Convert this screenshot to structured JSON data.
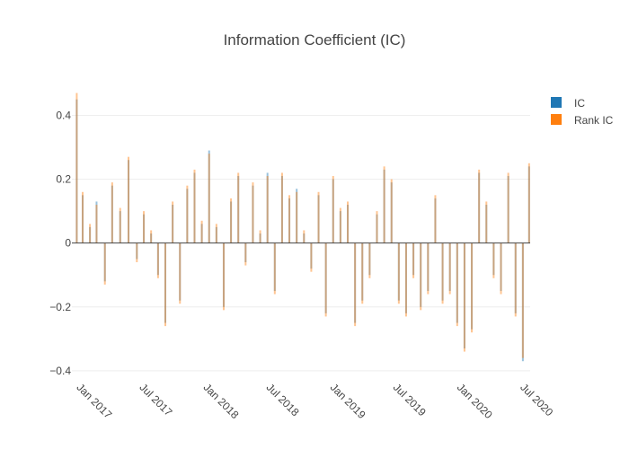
{
  "chart_data": {
    "type": "bar",
    "title": "Information Coefficient (IC)",
    "xlabel": "",
    "ylabel": "",
    "x_range": [
      "2016-12-20",
      "2020-07-31"
    ],
    "ylim": [
      -0.42,
      0.48
    ],
    "yticks": [
      -0.4,
      -0.2,
      0,
      0.2,
      0.4
    ],
    "ytick_labels": [
      "−0.4",
      "−0.2",
      "0",
      "0.2",
      "0.4"
    ],
    "xticks": [
      "2017-01-01",
      "2017-07-01",
      "2018-01-01",
      "2018-07-01",
      "2019-01-01",
      "2019-07-01",
      "2020-01-01",
      "2020-07-01"
    ],
    "xtick_labels": [
      "Jan 2017",
      "Jul 2017",
      "Jan 2018",
      "Jul 2018",
      "Jan 2019",
      "Jul 2019",
      "Jan 2020",
      "Jul 2020"
    ],
    "grid": true,
    "legend_position": "top-right",
    "series_colors": {
      "IC": "#1f77b4",
      "Rank IC": "#ff7f0e"
    },
    "bar_opacity": 0.45,
    "series": [
      {
        "name": "IC",
        "x": [
          "2017-01-03",
          "2017-01-20",
          "2017-02-10",
          "2017-03-01",
          "2017-03-25",
          "2017-04-15",
          "2017-05-08",
          "2017-06-01",
          "2017-06-25",
          "2017-07-15",
          "2017-08-05",
          "2017-08-25",
          "2017-09-15",
          "2017-10-06",
          "2017-10-27",
          "2017-11-17",
          "2017-12-08",
          "2017-12-29",
          "2018-01-19",
          "2018-02-09",
          "2018-03-02",
          "2018-03-23",
          "2018-04-13",
          "2018-05-04",
          "2018-05-25",
          "2018-06-15",
          "2018-07-06",
          "2018-07-27",
          "2018-08-17",
          "2018-09-07",
          "2018-09-28",
          "2018-10-19",
          "2018-11-09",
          "2018-11-30",
          "2018-12-21",
          "2019-01-11",
          "2019-02-01",
          "2019-02-22",
          "2019-03-15",
          "2019-04-05",
          "2019-04-26",
          "2019-05-17",
          "2019-06-07",
          "2019-06-28",
          "2019-07-19",
          "2019-08-09",
          "2019-08-30",
          "2019-09-20",
          "2019-10-11",
          "2019-11-01",
          "2019-11-22",
          "2019-12-13",
          "2020-01-03",
          "2020-01-24",
          "2020-02-14",
          "2020-03-06",
          "2020-03-27",
          "2020-04-17",
          "2020-05-08",
          "2020-05-29",
          "2020-06-19",
          "2020-07-10",
          "2020-07-28"
        ],
        "values": [
          0.45,
          0.15,
          0.05,
          0.13,
          -0.12,
          0.18,
          0.1,
          0.26,
          -0.05,
          0.09,
          0.03,
          -0.1,
          -0.25,
          0.12,
          -0.18,
          0.17,
          0.22,
          0.06,
          0.29,
          0.05,
          -0.2,
          0.13,
          0.21,
          -0.06,
          0.18,
          0.03,
          0.22,
          -0.15,
          0.21,
          0.14,
          0.17,
          0.03,
          -0.08,
          0.15,
          -0.22,
          0.2,
          0.1,
          0.12,
          -0.25,
          -0.18,
          -0.1,
          0.09,
          0.23,
          0.19,
          -0.18,
          -0.22,
          -0.1,
          -0.2,
          -0.15,
          0.14,
          -0.18,
          -0.15,
          -0.25,
          -0.33,
          -0.27,
          0.22,
          0.12,
          -0.1,
          -0.15,
          0.21,
          -0.22,
          -0.37,
          0.24
        ]
      },
      {
        "name": "Rank IC",
        "x": [
          "2017-01-03",
          "2017-01-20",
          "2017-02-10",
          "2017-03-01",
          "2017-03-25",
          "2017-04-15",
          "2017-05-08",
          "2017-06-01",
          "2017-06-25",
          "2017-07-15",
          "2017-08-05",
          "2017-08-25",
          "2017-09-15",
          "2017-10-06",
          "2017-10-27",
          "2017-11-17",
          "2017-12-08",
          "2017-12-29",
          "2018-01-19",
          "2018-02-09",
          "2018-03-02",
          "2018-03-23",
          "2018-04-13",
          "2018-05-04",
          "2018-05-25",
          "2018-06-15",
          "2018-07-06",
          "2018-07-27",
          "2018-08-17",
          "2018-09-07",
          "2018-09-28",
          "2018-10-19",
          "2018-11-09",
          "2018-11-30",
          "2018-12-21",
          "2019-01-11",
          "2019-02-01",
          "2019-02-22",
          "2019-03-15",
          "2019-04-05",
          "2019-04-26",
          "2019-05-17",
          "2019-06-07",
          "2019-06-28",
          "2019-07-19",
          "2019-08-09",
          "2019-08-30",
          "2019-09-20",
          "2019-10-11",
          "2019-11-01",
          "2019-11-22",
          "2019-12-13",
          "2020-01-03",
          "2020-01-24",
          "2020-02-14",
          "2020-03-06",
          "2020-03-27",
          "2020-04-17",
          "2020-05-08",
          "2020-05-29",
          "2020-06-19",
          "2020-07-10",
          "2020-07-28"
        ],
        "values": [
          0.47,
          0.16,
          0.06,
          0.12,
          -0.13,
          0.19,
          0.11,
          0.27,
          -0.06,
          0.1,
          0.04,
          -0.11,
          -0.26,
          0.13,
          -0.19,
          0.18,
          0.23,
          0.07,
          0.28,
          0.06,
          -0.21,
          0.14,
          0.22,
          -0.07,
          0.19,
          0.04,
          0.21,
          -0.16,
          0.22,
          0.15,
          0.16,
          0.04,
          -0.09,
          0.16,
          -0.23,
          0.21,
          0.11,
          0.13,
          -0.26,
          -0.19,
          -0.11,
          0.1,
          0.24,
          0.2,
          -0.19,
          -0.23,
          -0.11,
          -0.21,
          -0.16,
          0.15,
          -0.19,
          -0.16,
          -0.26,
          -0.34,
          -0.28,
          0.23,
          0.13,
          -0.11,
          -0.16,
          0.22,
          -0.23,
          -0.36,
          0.25
        ]
      }
    ]
  }
}
